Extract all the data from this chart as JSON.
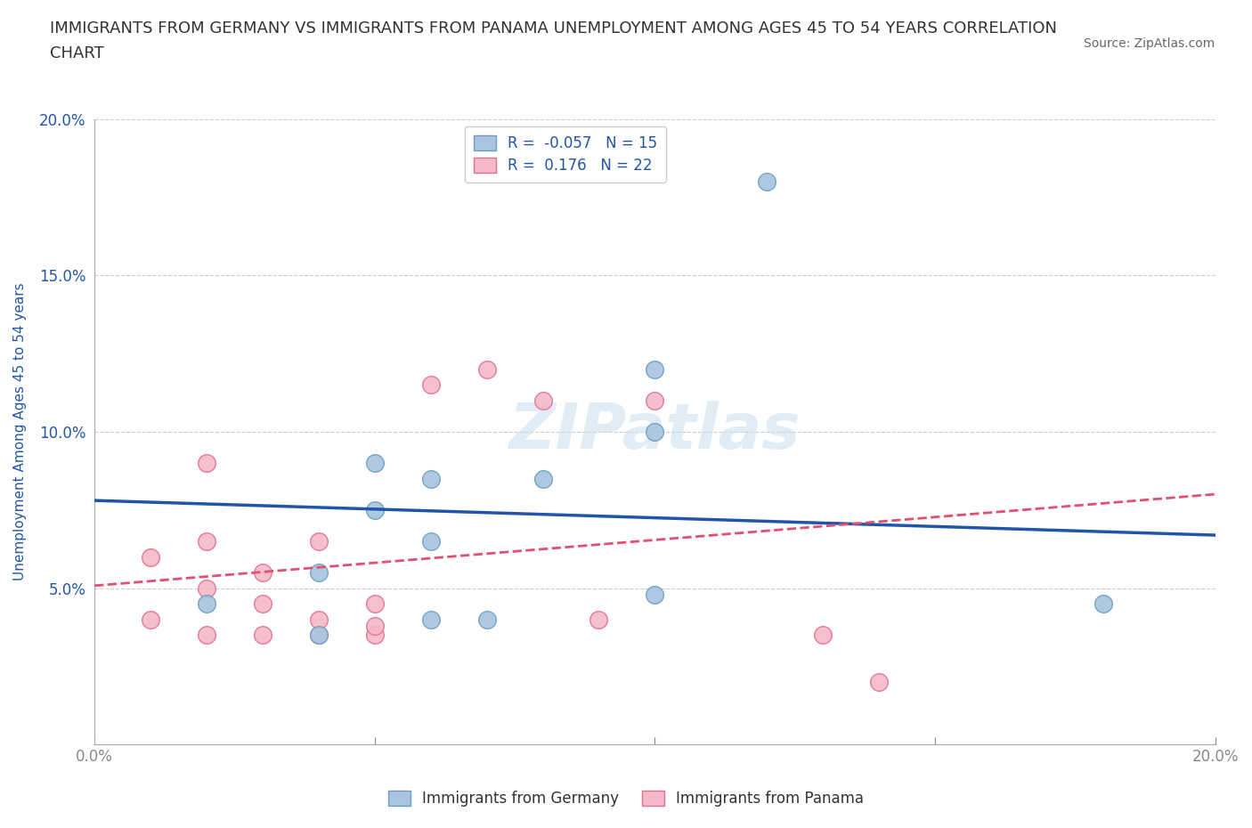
{
  "title_line1": "IMMIGRANTS FROM GERMANY VS IMMIGRANTS FROM PANAMA UNEMPLOYMENT AMONG AGES 45 TO 54 YEARS CORRELATION",
  "title_line2": "CHART",
  "source_text": "Source: ZipAtlas.com",
  "xlabel": "",
  "ylabel": "Unemployment Among Ages 45 to 54 years",
  "xlim": [
    0.0,
    0.2
  ],
  "ylim": [
    0.0,
    0.2
  ],
  "watermark": "ZIPatlas",
  "germany_color": "#a8c4e0",
  "germany_edge": "#6a9ec0",
  "panama_color": "#f4b8c8",
  "panama_edge": "#e07090",
  "germany_R": -0.057,
  "germany_N": 15,
  "panama_R": 0.176,
  "panama_N": 22,
  "germany_line_color": "#2255aa",
  "panama_line_color": "#e05070",
  "germany_scatter_x": [
    0.02,
    0.04,
    0.04,
    0.05,
    0.05,
    0.06,
    0.06,
    0.06,
    0.07,
    0.08,
    0.1,
    0.1,
    0.12,
    0.18,
    0.1
  ],
  "germany_scatter_y": [
    0.045,
    0.035,
    0.055,
    0.09,
    0.075,
    0.04,
    0.085,
    0.065,
    0.04,
    0.085,
    0.12,
    0.048,
    0.18,
    0.045,
    0.1
  ],
  "panama_scatter_x": [
    0.01,
    0.01,
    0.02,
    0.02,
    0.02,
    0.02,
    0.03,
    0.03,
    0.03,
    0.04,
    0.04,
    0.04,
    0.05,
    0.05,
    0.05,
    0.06,
    0.07,
    0.08,
    0.09,
    0.1,
    0.13,
    0.14
  ],
  "panama_scatter_y": [
    0.04,
    0.06,
    0.035,
    0.05,
    0.065,
    0.09,
    0.035,
    0.045,
    0.055,
    0.035,
    0.04,
    0.065,
    0.035,
    0.038,
    0.045,
    0.115,
    0.12,
    0.11,
    0.04,
    0.11,
    0.035,
    0.02
  ],
  "background_color": "#ffffff",
  "grid_color": "#cccccc",
  "title_color": "#333333",
  "axis_label_color": "#2255aa",
  "tick_label_color": "#2255aa"
}
